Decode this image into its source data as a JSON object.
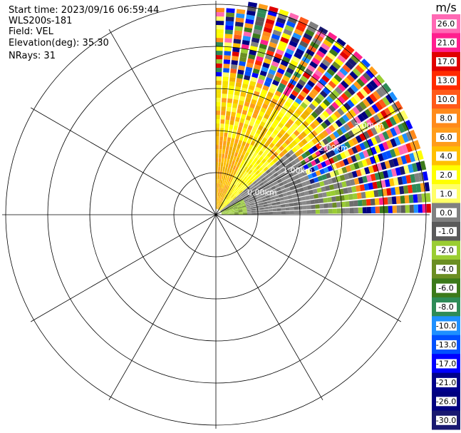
{
  "header": {
    "start_time": "Start time: 2023/09/16 06:59:44",
    "instrument": "WLS200s-181",
    "field": "Field: VEL",
    "elevation": "Elevation(deg): 35.30",
    "nrays": "NRays: 31"
  },
  "chart_data": {
    "type": "heatmap",
    "projection": "polar PPI",
    "field": "VEL",
    "elevation_deg": 35.3,
    "nrays": 31,
    "sector_azimuth_deg": [
      0,
      90
    ],
    "range_ring_labels": [
      "0.00km",
      "1.00km",
      "2.00km",
      "3.00km"
    ],
    "colorbar": {
      "unit": "m/s",
      "ticks": [
        "26.0",
        "21.0",
        "17.0",
        "13.0",
        "10.0",
        "8.0",
        "6.0",
        "4.0",
        "2.0",
        "1.0",
        "0.0",
        "-1.0",
        "-2.0",
        "-4.0",
        "-6.0",
        "-8.0",
        "-10.0",
        "-13.0",
        "-17.0",
        "-21.0",
        "-26.0",
        "-30.0"
      ],
      "colors": [
        "#ff69b4",
        "#ff1f8e",
        "#e00000",
        "#ff2a00",
        "#ff5a1a",
        "#ff8a1a",
        "#ff9d1a",
        "#ffc000",
        "#ffff00",
        "#ffff66",
        "#808080",
        "#5a5a5a",
        "#9acd32",
        "#6b8e23",
        "#3c7a1a",
        "#2e8b57",
        "#1e90ff",
        "#0050ff",
        "#0000ff",
        "#00008b",
        "#000080",
        "#191970"
      ]
    }
  }
}
